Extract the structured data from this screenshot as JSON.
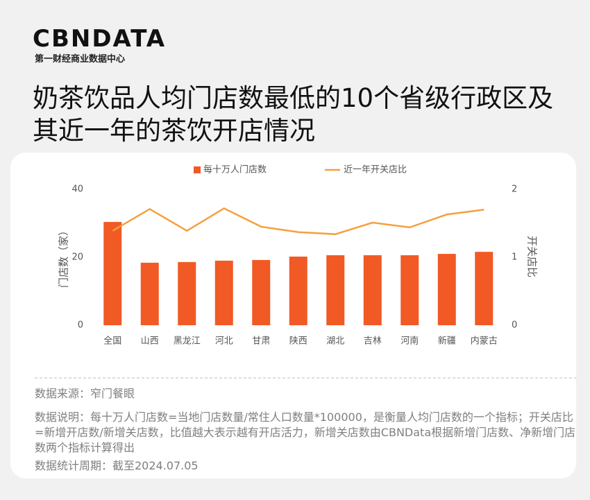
{
  "header": {
    "logo": "CBNDATA",
    "subtitle": "第一财经商业数据中心",
    "title": "奶茶饮品人均门店数最低的10个省级行政区及其近一年的茶饮开店情况"
  },
  "chart_data": {
    "type": "bar",
    "categories": [
      "全国",
      "山西",
      "黑龙江",
      "河北",
      "甘肃",
      "陕西",
      "湖北",
      "吉林",
      "河南",
      "新疆",
      "内蒙古"
    ],
    "series": [
      {
        "name": "每十万人门店数",
        "type": "bar",
        "color": "#f15a24",
        "values": [
          30.4,
          18.4,
          18.6,
          19.0,
          19.2,
          20.2,
          20.6,
          20.6,
          20.6,
          21.0,
          21.6
        ]
      },
      {
        "name": "近一年开关店比",
        "type": "line",
        "axis": "y2",
        "color": "#f5a03c",
        "values": [
          1.39,
          1.71,
          1.39,
          1.72,
          1.45,
          1.37,
          1.34,
          1.51,
          1.44,
          1.63,
          1.7
        ]
      }
    ],
    "ylabel": "门店数（家）",
    "y2label": "开关店比",
    "ylim": [
      0,
      40
    ],
    "yticks": [
      0,
      20,
      40
    ],
    "y2lim": [
      0,
      2
    ],
    "y2ticks": [
      0,
      1,
      2
    ]
  },
  "notes": {
    "source": "数据来源：窄门餐眼",
    "description": "数据说明：每十万人门店数=当地门店数量/常住人口数量*100000，是衡量人均门店数的一个指标；开关店比=新增开店数/新增关店数，比值越大表示越有开店活力，新增关店数由CBNData根据新增门店数、净新增门店数两个指标计算得出",
    "period": "数据统计周期：截至2024.07.05"
  }
}
